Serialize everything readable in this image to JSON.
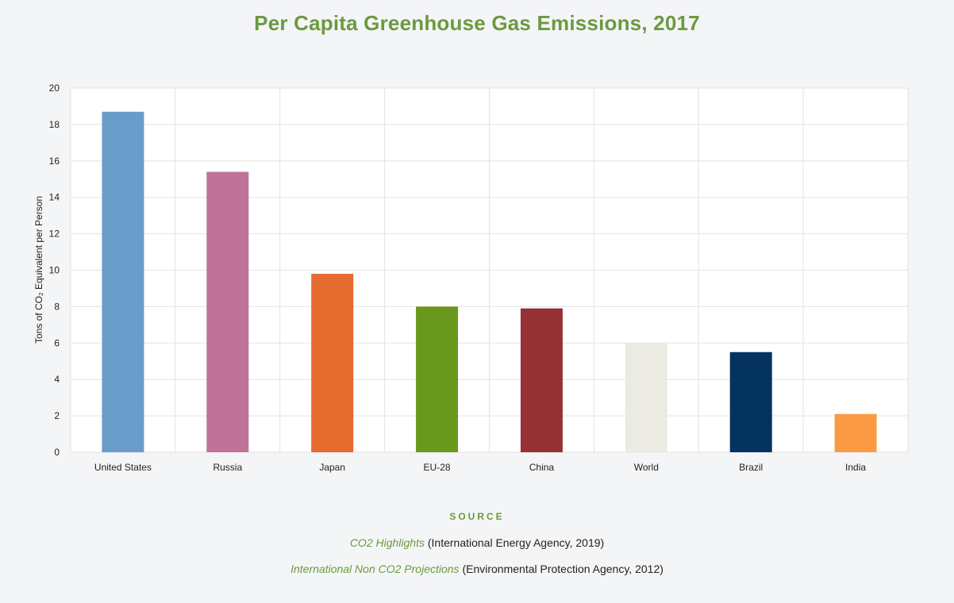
{
  "chart_data": {
    "type": "bar",
    "title": "Per Capita Greenhouse Gas Emissions, 2017",
    "xlabel": "",
    "ylabel": "Tons of CO₂ Equivalent per Person",
    "ylim": [
      0,
      20
    ],
    "yticks": [
      0,
      2,
      4,
      6,
      8,
      10,
      12,
      14,
      16,
      18,
      20
    ],
    "grid": true,
    "categories": [
      "United States",
      "Russia",
      "Japan",
      "EU-28",
      "China",
      "World",
      "Brazil",
      "India"
    ],
    "values": [
      18.7,
      15.4,
      9.8,
      8.0,
      7.9,
      6.0,
      5.5,
      2.1
    ],
    "colors": [
      "#6a9cca",
      "#c07399",
      "#e56b2f",
      "#6a981d",
      "#963136",
      "#ecebe3",
      "#04335f",
      "#fc9a43"
    ]
  },
  "source": {
    "heading": "SOURCE",
    "items": [
      {
        "title": "CO2 Highlights",
        "detail": " (International Energy Agency, 2019)"
      },
      {
        "title": "International Non CO2 Projections",
        "detail": " (Environmental Protection Agency, 2012)"
      }
    ]
  }
}
